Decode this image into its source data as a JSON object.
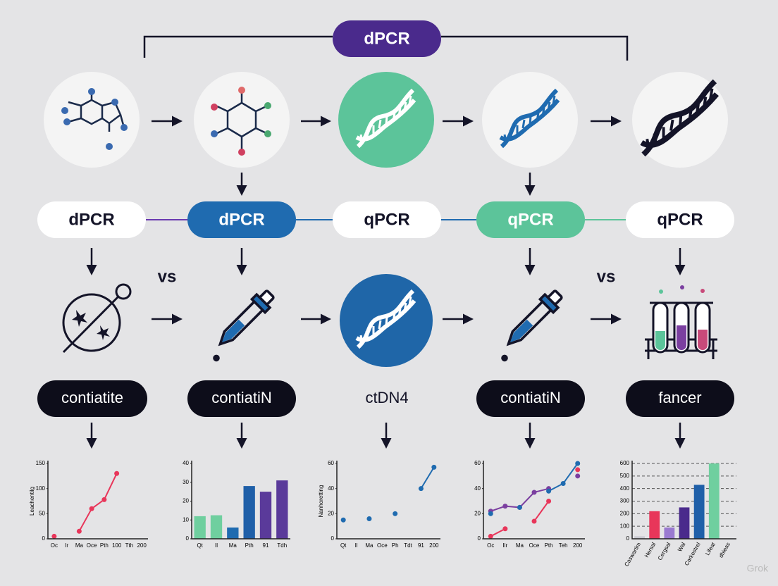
{
  "top_label": "dPCR",
  "row2": [
    "dPCR",
    "dPCR",
    "qPCR",
    "qPCR",
    "qPCR"
  ],
  "vs": [
    "vs",
    "vs"
  ],
  "row4": [
    "contiatite",
    "contiatiN",
    "ctDN4",
    "contiatiN",
    "fancer"
  ],
  "charts": [
    {
      "type": "line",
      "ylabel": "Leachentilg",
      "categories": [
        "Oc",
        "Ir",
        "Ma",
        "Oce",
        "Pth",
        "100",
        "Tth",
        "200"
      ],
      "ylim": [
        0,
        150
      ],
      "yticks": [
        0,
        50,
        100,
        150
      ],
      "series": [
        {
          "color": "#e8365a",
          "values": [
            5,
            null,
            15,
            60,
            78,
            130,
            null,
            null
          ]
        }
      ]
    },
    {
      "type": "bar",
      "categories": [
        "Qt",
        "Il",
        "Ma",
        "Pth",
        "91",
        "Tdh"
      ],
      "ylim": [
        0,
        40
      ],
      "yticks": [
        0,
        10,
        20,
        30,
        40
      ],
      "series": [
        {
          "colors": [
            "#6fcf9f",
            "#6fcf9f",
            "#1f6bb0",
            "#1f5fa8",
            "#5a3a9a",
            "#5a3a9a"
          ],
          "values": [
            12,
            12.5,
            6,
            28,
            25,
            31
          ]
        }
      ]
    },
    {
      "type": "line",
      "ylabel": "Nanhoretting",
      "categories": [
        "Qt",
        "Il",
        "Ma",
        "Oce",
        "Ph",
        "Tdt",
        "91",
        "200"
      ],
      "ylim": [
        0,
        60
      ],
      "yticks": [
        0,
        20,
        40,
        60
      ],
      "series": [
        {
          "color": "#1f6bb0",
          "values": [
            15,
            null,
            16,
            null,
            20,
            null,
            40,
            57
          ]
        }
      ]
    },
    {
      "type": "line",
      "categories": [
        "Oc",
        "Ilr",
        "Ma",
        "Oce",
        "Pth",
        "Teh",
        "200"
      ],
      "ylim": [
        0,
        60
      ],
      "yticks": [
        0,
        20,
        40,
        60
      ],
      "series": [
        {
          "color": "#7b3fa0",
          "values": [
            22,
            26,
            25,
            37,
            40,
            null,
            50
          ]
        },
        {
          "color": "#1f6bb0",
          "values": [
            20,
            null,
            25,
            null,
            38,
            44,
            60
          ]
        },
        {
          "color": "#e8365a",
          "values": [
            2,
            8,
            null,
            14,
            30,
            null,
            55
          ]
        }
      ]
    },
    {
      "type": "bar",
      "categories": [
        "Caswartim",
        "Hersal",
        "Cergsal",
        "Wal",
        "Carkestrel",
        "Lifeat",
        "dhieas"
      ],
      "ylim": [
        0,
        600
      ],
      "yticks": [
        0,
        100,
        200,
        300,
        400,
        500,
        600
      ],
      "grid": true,
      "series": [
        {
          "colors": [
            "#c8c8d0",
            "#e8365a",
            "#9a7ad0",
            "#4a2a8c",
            "#1f5fa8",
            "#6fcf9f",
            "#c8c8d0"
          ],
          "values": [
            20,
            220,
            90,
            250,
            430,
            600,
            0
          ]
        }
      ]
    }
  ],
  "watermark": "Grok"
}
